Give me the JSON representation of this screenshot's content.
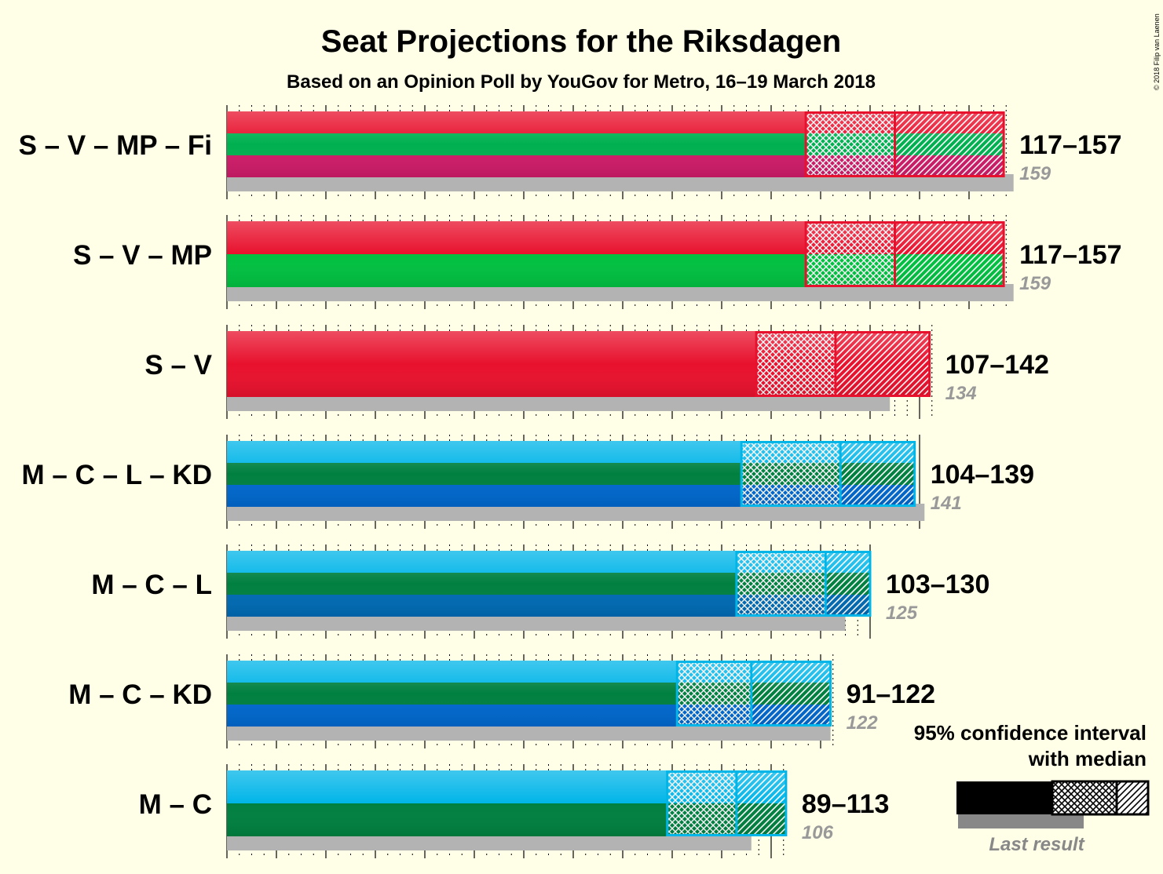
{
  "chart_data": {
    "type": "bar",
    "title": "Seat Projections for the Riksdagen",
    "subtitle": "Based on an Opinion Poll by YouGov for Metro, 16–19 March 2018",
    "copyright": "© 2018 Filip van Laenen",
    "xlim": [
      0,
      175
    ],
    "majority": 175,
    "coalitions": [
      {
        "name": "S – V – MP – Fi",
        "low": 117,
        "median": 135,
        "high": 157,
        "last": 159,
        "range_label": "117–157",
        "last_label": "159",
        "colors": [
          "#E8112D",
          "#00B050",
          "#CD1B68"
        ]
      },
      {
        "name": "S – V – MP",
        "low": 117,
        "median": 135,
        "high": 157,
        "last": 159,
        "range_label": "117–157",
        "last_label": "159",
        "colors": [
          "#E8112D",
          "#00C040"
        ]
      },
      {
        "name": "S – V",
        "low": 107,
        "median": 123,
        "high": 142,
        "last": 134,
        "range_label": "107–142",
        "last_label": "134",
        "colors": [
          "#E8112D"
        ]
      },
      {
        "name": "M – C – L – KD",
        "low": 104,
        "median": 124,
        "high": 139,
        "last": 141,
        "range_label": "104–139",
        "last_label": "141",
        "colors": [
          "#00B5E8",
          "#008040",
          "#0067CC"
        ]
      },
      {
        "name": "M – C – L",
        "low": 103,
        "median": 121,
        "high": 130,
        "last": 125,
        "range_label": "103–130",
        "last_label": "125",
        "colors": [
          "#00B5E8",
          "#008040",
          "#006AB3"
        ]
      },
      {
        "name": "M – C – KD",
        "low": 91,
        "median": 106,
        "high": 122,
        "last": 122,
        "range_label": "91–122",
        "last_label": "122",
        "colors": [
          "#00B5E8",
          "#008040",
          "#0067CC"
        ]
      },
      {
        "name": "M – C",
        "low": 89,
        "median": 103,
        "high": 113,
        "last": 106,
        "range_label": "89–113",
        "last_label": "106",
        "colors": [
          "#00B5E8",
          "#008040"
        ]
      }
    ],
    "legend": {
      "line1": "95% confidence interval",
      "line2": "with median",
      "last_result": "Last result"
    }
  }
}
